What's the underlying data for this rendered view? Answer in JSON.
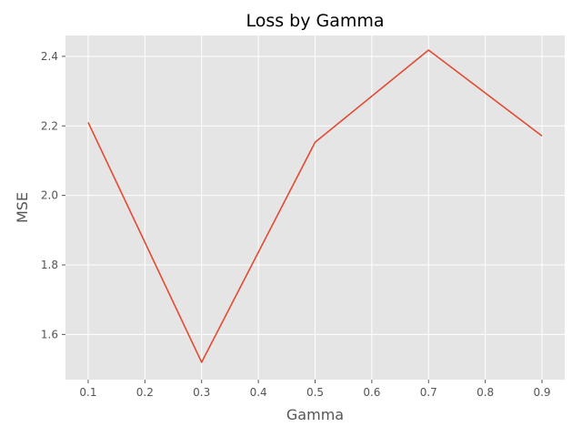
{
  "chart_data": {
    "type": "line",
    "title": "Loss by Gamma",
    "xlabel": "Gamma",
    "ylabel": "MSE",
    "x": [
      0.1,
      0.3,
      0.5,
      0.7,
      0.9
    ],
    "series": [
      {
        "values": [
          2.21,
          1.52,
          2.153,
          2.418,
          2.171
        ]
      }
    ],
    "xlim": [
      0.06,
      0.94
    ],
    "ylim": [
      1.47,
      2.46
    ],
    "xticks": [
      0.1,
      0.2,
      0.3,
      0.4,
      0.5,
      0.6,
      0.7,
      0.8,
      0.9
    ],
    "xtick_labels": [
      "0.1",
      "0.2",
      "0.3",
      "0.4",
      "0.5",
      "0.6",
      "0.7",
      "0.8",
      "0.9"
    ],
    "yticks": [
      1.6,
      1.8,
      2.0,
      2.2,
      2.4
    ],
    "ytick_labels": [
      "1.6",
      "1.8",
      "2.0",
      "2.2",
      "2.4"
    ],
    "grid": true,
    "line_color": "#E24A33",
    "background_color": "#E5E5E5",
    "grid_color": "#FFFFFF"
  }
}
